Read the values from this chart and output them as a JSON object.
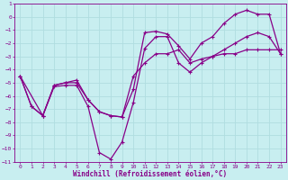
{
  "xlabel": "Windchill (Refroidissement éolien,°C)",
  "bg_color": "#c8eef0",
  "grid_color": "#b0dde0",
  "line_color": "#880088",
  "xlim": [
    -0.5,
    23.5
  ],
  "ylim": [
    -11,
    1
  ],
  "xticks": [
    0,
    1,
    2,
    3,
    4,
    5,
    6,
    7,
    8,
    9,
    10,
    11,
    12,
    13,
    14,
    15,
    16,
    17,
    18,
    19,
    20,
    21,
    22,
    23
  ],
  "yticks": [
    1,
    0,
    -1,
    -2,
    -3,
    -4,
    -5,
    -6,
    -7,
    -8,
    -9,
    -10,
    -11
  ],
  "line1_x": [
    0,
    1,
    2,
    3,
    4,
    5,
    6,
    7,
    8,
    9,
    10,
    11,
    12,
    13,
    14,
    15,
    16,
    17,
    18,
    19,
    20,
    21,
    22,
    23
  ],
  "line1_y": [
    -4.5,
    -6.8,
    -7.5,
    -5.2,
    -5.0,
    -4.8,
    -6.3,
    -7.2,
    -7.5,
    -7.6,
    -5.5,
    -1.2,
    -1.1,
    -1.3,
    -2.2,
    -3.2,
    -2.0,
    -1.5,
    -0.5,
    0.2,
    0.5,
    0.2,
    0.2,
    -2.8
  ],
  "line2_x": [
    0,
    1,
    2,
    3,
    4,
    5,
    6,
    7,
    8,
    9,
    10,
    11,
    12,
    13,
    14,
    15,
    16,
    17,
    18,
    19,
    20,
    21,
    22,
    23
  ],
  "line2_y": [
    -4.5,
    -6.8,
    -7.5,
    -5.3,
    -5.2,
    -5.2,
    -6.8,
    -10.3,
    -10.8,
    -9.5,
    -6.5,
    -2.4,
    -1.5,
    -1.5,
    -3.5,
    -4.2,
    -3.5,
    -3.0,
    -2.5,
    -2.0,
    -1.5,
    -1.2,
    -1.5,
    -2.8
  ],
  "line3_x": [
    0,
    2,
    3,
    4,
    5,
    6,
    7,
    8,
    9,
    10,
    11,
    12,
    13,
    14,
    15,
    16,
    17,
    18,
    19,
    20,
    21,
    22,
    23
  ],
  "line3_y": [
    -4.5,
    -7.5,
    -5.2,
    -5.0,
    -5.0,
    -6.3,
    -7.2,
    -7.5,
    -7.6,
    -4.5,
    -3.5,
    -2.8,
    -2.8,
    -2.5,
    -3.5,
    -3.2,
    -3.0,
    -2.8,
    -2.8,
    -2.5,
    -2.5,
    -2.5,
    -2.5
  ]
}
